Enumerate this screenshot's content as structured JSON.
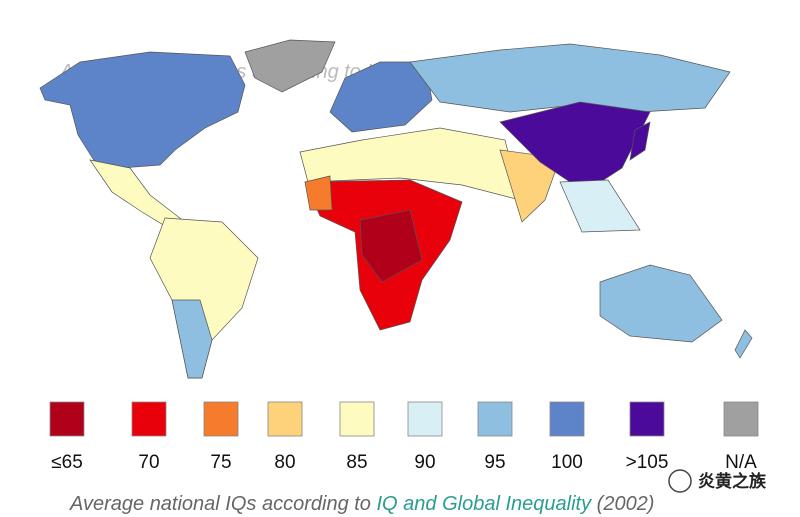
{
  "caption": {
    "part1": "Average national IQs according to",
    "part2": "IQ and Global Inequality",
    "part3": "(2002)"
  },
  "legend": [
    {
      "label": "≤65",
      "color": "#b0001a"
    },
    {
      "label": "70",
      "color": "#e8000b"
    },
    {
      "label": "75",
      "color": "#f47c2c"
    },
    {
      "label": "80",
      "color": "#fdd27a"
    },
    {
      "label": "85",
      "color": "#fdfbbf"
    },
    {
      "label": "90",
      "color": "#d8f0f5"
    },
    {
      "label": "95",
      "color": "#8fbfe0"
    },
    {
      "label": "100",
      "color": "#5d84c8"
    },
    {
      "label": ">105",
      "color": "#4b0a9a"
    },
    {
      "label": "N/A",
      "color": "#a0a0a0"
    }
  ],
  "watermark": "炎黄之族"
}
